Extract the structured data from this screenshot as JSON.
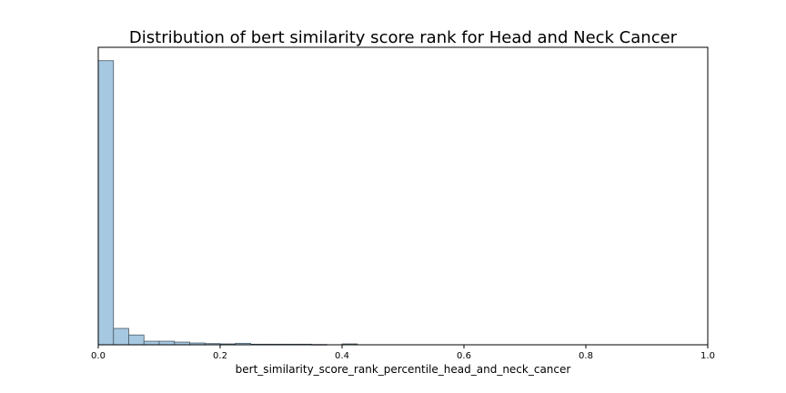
{
  "chart_data": {
    "type": "bar",
    "title": "Distribution of bert similarity score rank for Head and Neck Cancer",
    "xlabel": "bert_similarity_score_rank_percentile_head_and_neck_cancer",
    "ylabel": "",
    "xlim": [
      0.0,
      1.0
    ],
    "ylim": [
      0,
      1.0
    ],
    "y_ticks_shown": false,
    "x_ticks": [
      "0.0",
      "0.2",
      "0.4",
      "0.6",
      "0.8",
      "1.0"
    ],
    "x_tick_values": [
      0.0,
      0.2,
      0.4,
      0.6,
      0.8,
      1.0
    ],
    "bin_width": 0.025,
    "bins": [
      {
        "x": 0.0,
        "value": 0.955
      },
      {
        "x": 0.025,
        "value": 0.055
      },
      {
        "x": 0.05,
        "value": 0.033
      },
      {
        "x": 0.075,
        "value": 0.012
      },
      {
        "x": 0.1,
        "value": 0.012
      },
      {
        "x": 0.125,
        "value": 0.009
      },
      {
        "x": 0.15,
        "value": 0.006
      },
      {
        "x": 0.175,
        "value": 0.004
      },
      {
        "x": 0.2,
        "value": 0.003
      },
      {
        "x": 0.225,
        "value": 0.005
      },
      {
        "x": 0.25,
        "value": 0.002
      },
      {
        "x": 0.275,
        "value": 0.002
      },
      {
        "x": 0.3,
        "value": 0.002
      },
      {
        "x": 0.325,
        "value": 0.002
      },
      {
        "x": 0.35,
        "value": 0.001
      },
      {
        "x": 0.375,
        "value": 0.0
      },
      {
        "x": 0.4,
        "value": 0.003
      },
      {
        "x": 0.425,
        "value": 0.0
      }
    ],
    "colors": {
      "bar_fill": "#a6c8e0",
      "bar_edge": "#4a5a66",
      "axes": "#000000"
    }
  }
}
